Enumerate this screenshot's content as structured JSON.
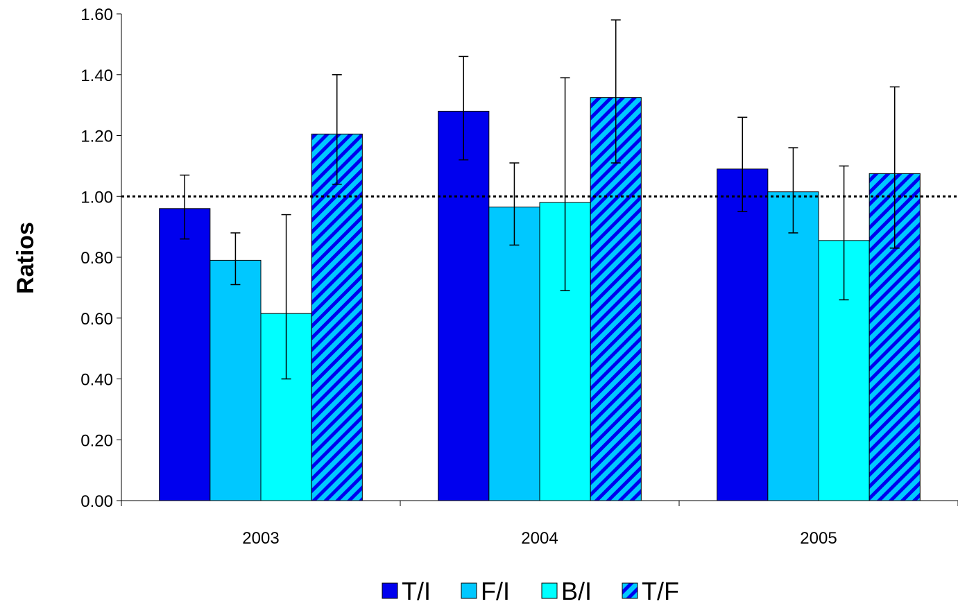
{
  "chart_data": {
    "type": "bar",
    "categories": [
      "2003",
      "2004",
      "2005"
    ],
    "ylabel": "Ratios",
    "xlabel": "",
    "ylim": [
      0,
      1.6
    ],
    "yticks": [
      "0.00",
      "0.20",
      "0.40",
      "0.60",
      "0.80",
      "1.00",
      "1.20",
      "1.40",
      "1.60"
    ],
    "reference_line": 1.0,
    "legend_position": "bottom",
    "grid": false,
    "series": [
      {
        "name": "T/I",
        "color": "#0000ee",
        "pattern": "solid",
        "values": [
          0.96,
          1.28,
          1.09
        ],
        "err_low": [
          0.86,
          1.12,
          0.95
        ],
        "err_high": [
          1.07,
          1.46,
          1.26
        ]
      },
      {
        "name": "F/I",
        "color": "#00c8ff",
        "pattern": "solid",
        "values": [
          0.79,
          0.965,
          1.015
        ],
        "err_low": [
          0.71,
          0.84,
          0.88
        ],
        "err_high": [
          0.88,
          1.11,
          1.16
        ]
      },
      {
        "name": "B/I",
        "color": "#00ffff",
        "pattern": "solid",
        "values": [
          0.615,
          0.98,
          0.855
        ],
        "err_low": [
          0.4,
          0.69,
          0.66
        ],
        "err_high": [
          0.94,
          1.39,
          1.1
        ]
      },
      {
        "name": "T/F",
        "color": "#00c8ff",
        "pattern": "hatch",
        "hatch_color": "#0000ee",
        "values": [
          1.205,
          1.325,
          1.075
        ],
        "err_low": [
          1.04,
          1.11,
          0.83
        ],
        "err_high": [
          1.4,
          1.58,
          1.36
        ]
      }
    ]
  }
}
